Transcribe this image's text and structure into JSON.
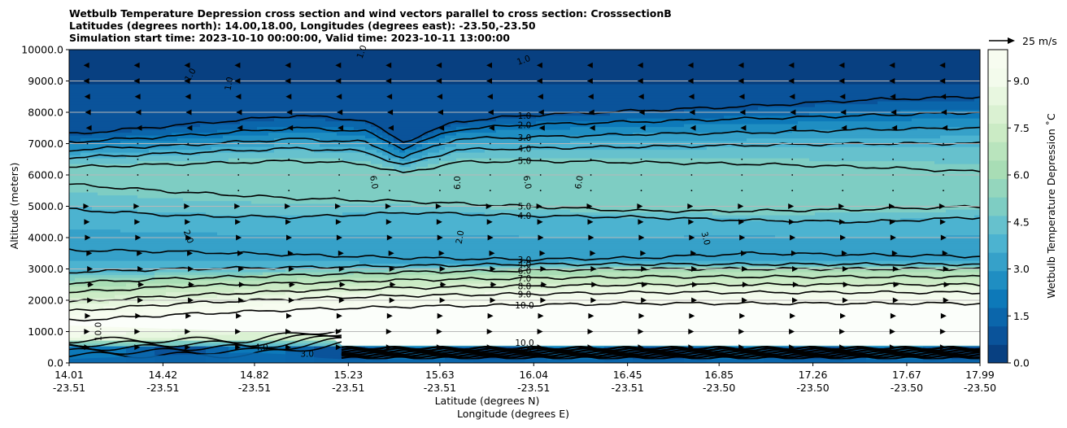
{
  "title": {
    "line1": "Wetbulb Temperature Depression cross section and wind vectors parallel to cross section: CrosssectionB",
    "line2": "Latitudes (degrees north): 14.00,18.00, Longitudes (degrees east): -23.50,-23.50",
    "line3": "Simulation start time: 2023-10-10 00:00:00, Valid time: 2023-10-11 13:00:00"
  },
  "chart_data": {
    "type": "contour",
    "title": "Wetbulb Temperature Depression cross section and wind vectors parallel to cross section: CrosssectionB",
    "ylabel": "Altitude (meters)",
    "xlabel_lat": "Latitude (degrees N)",
    "xlabel_lon": "Longitude (degrees E)",
    "ylim": [
      0,
      10000
    ],
    "xlim": [
      14.01,
      17.99
    ],
    "y_ticks": [
      {
        "value": 0,
        "label": "0.0"
      },
      {
        "value": 1000,
        "label": "1000.0"
      },
      {
        "value": 2000,
        "label": "2000.0"
      },
      {
        "value": 3000,
        "label": "3000.0"
      },
      {
        "value": 4000,
        "label": "4000.0"
      },
      {
        "value": 5000,
        "label": "5000.0"
      },
      {
        "value": 6000,
        "label": "6000.0"
      },
      {
        "value": 7000,
        "label": "7000.0"
      },
      {
        "value": 8000,
        "label": "8000.0"
      },
      {
        "value": 9000,
        "label": "9000.0"
      },
      {
        "value": 10000,
        "label": "10000.0"
      }
    ],
    "x_ticks": [
      {
        "lat": 14.01,
        "lat_label": "14.01",
        "lon_label": "-23.51"
      },
      {
        "lat": 14.42,
        "lat_label": "14.42",
        "lon_label": "-23.51"
      },
      {
        "lat": 14.82,
        "lat_label": "14.82",
        "lon_label": "-23.51"
      },
      {
        "lat": 15.23,
        "lat_label": "15.23",
        "lon_label": "-23.51"
      },
      {
        "lat": 15.63,
        "lat_label": "15.63",
        "lon_label": "-23.51"
      },
      {
        "lat": 16.04,
        "lat_label": "16.04",
        "lon_label": "-23.51"
      },
      {
        "lat": 16.45,
        "lat_label": "16.45",
        "lon_label": "-23.51"
      },
      {
        "lat": 16.85,
        "lat_label": "16.85",
        "lon_label": "-23.50"
      },
      {
        "lat": 17.26,
        "lat_label": "17.26",
        "lon_label": "-23.50"
      },
      {
        "lat": 17.67,
        "lat_label": "17.67",
        "lon_label": "-23.50"
      },
      {
        "lat": 17.99,
        "lat_label": "17.99",
        "lon_label": "-23.50"
      }
    ],
    "grid": "horizontal",
    "colorbar": {
      "label": "Wetbulb Temperature Depression ˚C",
      "range": [
        0,
        10
      ],
      "ticks": [
        {
          "value": 0.0,
          "label": "0.0"
        },
        {
          "value": 1.5,
          "label": "1.5"
        },
        {
          "value": 3.0,
          "label": "3.0"
        },
        {
          "value": 4.5,
          "label": "4.5"
        },
        {
          "value": 6.0,
          "label": "6.0"
        },
        {
          "value": 7.5,
          "label": "7.5"
        },
        {
          "value": 9.0,
          "label": "9.0"
        }
      ],
      "colors": [
        "#084081",
        "#0a539a",
        "#0b66ab",
        "#0d79b9",
        "#1f8ec2",
        "#36a1c9",
        "#4cb3d0",
        "#66c1cd",
        "#7ecdc3",
        "#94d6bd",
        "#a8ddb5",
        "#b9e4bd",
        "#cbebc5",
        "#daf1d2",
        "#e8f7e0",
        "#f3fbec",
        "#f7fcf0"
      ]
    },
    "contour_levels": [
      {
        "level": 1.0,
        "label": "1.0",
        "profile": [
          [
            14.01,
            7300
          ],
          [
            14.5,
            7600
          ],
          [
            15.0,
            7900
          ],
          [
            15.3,
            7750
          ],
          [
            15.47,
            7050
          ],
          [
            15.7,
            7700
          ],
          [
            16.0,
            7900
          ],
          [
            16.5,
            8050
          ],
          [
            17.0,
            8200
          ],
          [
            17.5,
            8400
          ],
          [
            17.99,
            8500
          ]
        ]
      },
      {
        "level": 2.0,
        "label": "2.0",
        "profile": [
          [
            14.01,
            7050
          ],
          [
            14.5,
            7250
          ],
          [
            15.0,
            7500
          ],
          [
            15.3,
            7400
          ],
          [
            15.47,
            6850
          ],
          [
            15.7,
            7450
          ],
          [
            16.0,
            7600
          ],
          [
            16.5,
            7700
          ],
          [
            17.0,
            7800
          ],
          [
            17.5,
            7900
          ],
          [
            17.99,
            8000
          ]
        ]
      },
      {
        "level": 3.0,
        "label": "3.0",
        "profile": [
          [
            14.01,
            6800
          ],
          [
            14.5,
            6950
          ],
          [
            15.0,
            7150
          ],
          [
            15.3,
            7050
          ],
          [
            15.47,
            6550
          ],
          [
            15.7,
            7150
          ],
          [
            16.0,
            7200
          ],
          [
            16.5,
            7300
          ],
          [
            17.0,
            7350
          ],
          [
            17.5,
            7450
          ],
          [
            17.99,
            7500
          ]
        ]
      },
      {
        "level": 4.0,
        "label": "4.0",
        "profile": [
          [
            14.01,
            6550
          ],
          [
            14.5,
            6700
          ],
          [
            15.0,
            6850
          ],
          [
            15.3,
            6750
          ],
          [
            15.47,
            6300
          ],
          [
            15.7,
            6800
          ],
          [
            16.0,
            6850
          ],
          [
            16.5,
            6900
          ],
          [
            17.0,
            6950
          ],
          [
            17.5,
            7000
          ],
          [
            17.99,
            7000
          ]
        ]
      },
      {
        "level": 5.0,
        "label": "5.0",
        "profile": [
          [
            14.01,
            6250
          ],
          [
            14.5,
            6350
          ],
          [
            15.0,
            6450
          ],
          [
            15.3,
            6350
          ],
          [
            15.47,
            6050
          ],
          [
            15.7,
            6400
          ],
          [
            16.0,
            6450
          ],
          [
            16.5,
            6400
          ],
          [
            17.0,
            6350
          ],
          [
            17.5,
            6250
          ],
          [
            17.99,
            6100
          ]
        ]
      },
      {
        "level": 5.0,
        "label": "5.0",
        "profile": [
          [
            14.01,
            5700
          ],
          [
            14.5,
            5450
          ],
          [
            15.0,
            5250
          ],
          [
            15.5,
            5150
          ],
          [
            16.0,
            5000
          ],
          [
            16.5,
            4850
          ],
          [
            17.0,
            4850
          ],
          [
            17.5,
            4900
          ],
          [
            17.99,
            5000
          ]
        ]
      },
      {
        "level": 4.0,
        "label": "4.0",
        "profile": [
          [
            14.01,
            4900
          ],
          [
            14.5,
            4700
          ],
          [
            15.0,
            4650
          ],
          [
            15.5,
            4800
          ],
          [
            16.0,
            4700
          ],
          [
            16.5,
            4650
          ],
          [
            17.0,
            4550
          ],
          [
            17.5,
            4500
          ],
          [
            17.99,
            4650
          ]
        ]
      },
      {
        "level": 3.0,
        "label": "3.0",
        "profile": [
          [
            14.01,
            3600
          ],
          [
            14.5,
            3550
          ],
          [
            15.0,
            3450
          ],
          [
            15.5,
            3350
          ],
          [
            16.0,
            3300
          ],
          [
            16.5,
            3350
          ],
          [
            17.0,
            3500
          ],
          [
            17.5,
            3450
          ],
          [
            17.99,
            3400
          ]
        ]
      },
      {
        "level": 4.0,
        "label": "4.0",
        "profile": [
          [
            14.01,
            2900
          ],
          [
            14.5,
            3000
          ],
          [
            15.0,
            3050
          ],
          [
            15.5,
            3100
          ],
          [
            16.0,
            3150
          ],
          [
            16.5,
            3150
          ],
          [
            17.0,
            3150
          ],
          [
            17.5,
            3150
          ],
          [
            17.99,
            3150
          ]
        ]
      },
      {
        "level": 6.0,
        "label": "6.0",
        "profile": [
          [
            14.01,
            2550
          ],
          [
            14.5,
            2700
          ],
          [
            15.0,
            2800
          ],
          [
            15.5,
            2900
          ],
          [
            16.0,
            2950
          ],
          [
            16.5,
            3000
          ],
          [
            17.0,
            3000
          ],
          [
            17.5,
            3000
          ],
          [
            17.99,
            3000
          ]
        ]
      },
      {
        "level": 7.0,
        "label": "7.0",
        "profile": [
          [
            14.01,
            2250
          ],
          [
            14.5,
            2450
          ],
          [
            15.0,
            2550
          ],
          [
            15.5,
            2650
          ],
          [
            16.0,
            2700
          ],
          [
            16.5,
            2750
          ],
          [
            17.0,
            2750
          ],
          [
            17.5,
            2750
          ],
          [
            17.99,
            2750
          ]
        ]
      },
      {
        "level": 8.0,
        "label": "8.0",
        "profile": [
          [
            14.01,
            1950
          ],
          [
            14.5,
            2150
          ],
          [
            15.0,
            2300
          ],
          [
            15.5,
            2400
          ],
          [
            16.0,
            2450
          ],
          [
            16.5,
            2500
          ],
          [
            17.0,
            2500
          ],
          [
            17.5,
            2500
          ],
          [
            17.99,
            2500
          ]
        ]
      },
      {
        "level": 9.0,
        "label": "9.0",
        "profile": [
          [
            14.01,
            1650
          ],
          [
            14.5,
            1900
          ],
          [
            15.0,
            2050
          ],
          [
            15.5,
            2150
          ],
          [
            16.0,
            2200
          ],
          [
            16.5,
            2250
          ],
          [
            17.0,
            2250
          ],
          [
            17.5,
            2250
          ],
          [
            17.99,
            2250
          ]
        ]
      },
      {
        "level": 10.0,
        "label": "10.0",
        "profile": [
          [
            14.01,
            1350
          ],
          [
            14.5,
            1550
          ],
          [
            15.0,
            1700
          ],
          [
            15.5,
            1800
          ],
          [
            16.0,
            1850
          ],
          [
            16.5,
            1900
          ],
          [
            17.0,
            1900
          ],
          [
            17.5,
            1900
          ],
          [
            17.99,
            1900
          ]
        ]
      }
    ],
    "inline_labels": [
      {
        "text": "1.0",
        "lat": 14.55,
        "alt": 9150,
        "rotate": -60
      },
      {
        "text": "1.0",
        "lat": 14.72,
        "alt": 8900,
        "rotate": -80
      },
      {
        "text": "1.0",
        "lat": 15.3,
        "alt": 9900,
        "rotate": -70
      },
      {
        "text": "1.0",
        "lat": 16.0,
        "alt": 9580,
        "rotate": -20
      },
      {
        "text": "6.0",
        "lat": 15.33,
        "alt": 5750,
        "rotate": 80
      },
      {
        "text": "6.0",
        "lat": 15.72,
        "alt": 5750,
        "rotate": -90
      },
      {
        "text": "6.0",
        "lat": 16.0,
        "alt": 5750,
        "rotate": 80
      },
      {
        "text": "6.0",
        "lat": 16.25,
        "alt": 5750,
        "rotate": -80
      },
      {
        "text": "2.0",
        "lat": 14.52,
        "alt": 4000,
        "rotate": 70
      },
      {
        "text": "2.0",
        "lat": 15.73,
        "alt": 4000,
        "rotate": -80
      },
      {
        "text": "3.0",
        "lat": 16.78,
        "alt": 3950,
        "rotate": 75
      },
      {
        "text": "4.0",
        "lat": 14.85,
        "alt": 400,
        "rotate": 0
      },
      {
        "text": "3.0",
        "lat": 15.05,
        "alt": 200,
        "rotate": 0
      },
      {
        "text": "10.0",
        "lat": 14.15,
        "alt": 1000,
        "rotate": -90
      },
      {
        "text": "10.0",
        "lat": 16.0,
        "alt": 550,
        "rotate": 0
      },
      {
        "text": "2.0",
        "lat": 16.0,
        "alt": 270,
        "rotate": 0
      }
    ],
    "wind_vectors": {
      "reference_label": "25 m/s",
      "reference_speed": 25,
      "lats": [
        14.09,
        14.31,
        14.53,
        14.75,
        14.97,
        15.19,
        15.41,
        15.63,
        15.85,
        16.07,
        16.29,
        16.51,
        16.73,
        16.95,
        17.17,
        17.39,
        17.61,
        17.83
      ],
      "alts": [
        500,
        1000,
        1500,
        2000,
        2500,
        3000,
        3500,
        4000,
        4500,
        5000,
        5500,
        6000,
        6500,
        7000,
        7500,
        8000,
        8500,
        9000,
        9500
      ],
      "u_profile": [
        {
          "alt": 500,
          "u": 3
        },
        {
          "alt": 1000,
          "u": 3
        },
        {
          "alt": 1500,
          "u": 4
        },
        {
          "alt": 2000,
          "u": 7
        },
        {
          "alt": 2500,
          "u": 8
        },
        {
          "alt": 3000,
          "u": 7
        },
        {
          "alt": 3500,
          "u": 6
        },
        {
          "alt": 4000,
          "u": 4
        },
        {
          "alt": 4500,
          "u": 3
        },
        {
          "alt": 5000,
          "u": 2
        },
        {
          "alt": 5500,
          "u": 1
        },
        {
          "alt": 6000,
          "u": 1
        },
        {
          "alt": 6500,
          "u": 0
        },
        {
          "alt": 7000,
          "u": -1
        },
        {
          "alt": 7500,
          "u": -2
        },
        {
          "alt": 8000,
          "u": -3
        },
        {
          "alt": 8500,
          "u": -4
        },
        {
          "alt": 9000,
          "u": -5
        },
        {
          "alt": 9500,
          "u": -5
        }
      ]
    },
    "terrain": [
      [
        14.01,
        0
      ],
      [
        14.2,
        60
      ],
      [
        14.4,
        120
      ],
      [
        14.6,
        160
      ],
      [
        14.8,
        210
      ],
      [
        15.0,
        140
      ],
      [
        15.1,
        40
      ],
      [
        15.2,
        0
      ],
      [
        17.99,
        0
      ]
    ]
  }
}
